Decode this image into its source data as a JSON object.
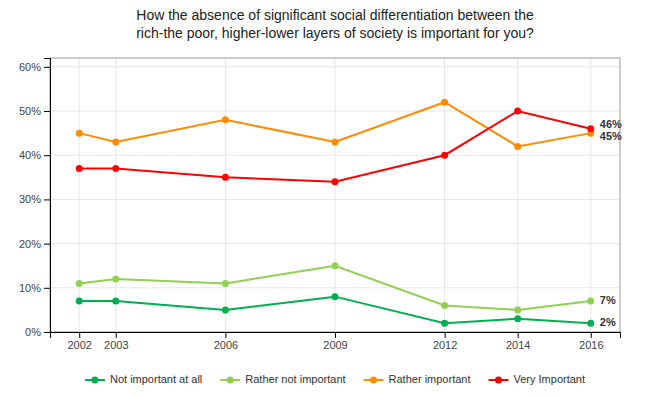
{
  "chart_data": {
    "type": "line",
    "title": "How the absence of significant social differentiation between the\nrich-the poor, higher-lower layers of society is important for you?",
    "x": [
      2002,
      2003,
      2006,
      2009,
      2012,
      2014,
      2016
    ],
    "series": [
      {
        "name": "Not important at all",
        "color": "#00b050",
        "marker": "circle",
        "values": [
          7,
          7,
          5,
          8,
          2,
          3,
          2
        ],
        "value_labels": [
          null,
          null,
          null,
          null,
          null,
          null,
          "2%"
        ]
      },
      {
        "name": "Rather not important",
        "color": "#92d050",
        "marker": "circle",
        "values": [
          11,
          12,
          11,
          15,
          6,
          5,
          7
        ],
        "value_labels": [
          null,
          null,
          null,
          null,
          null,
          null,
          "7%"
        ]
      },
      {
        "name": "Rather important",
        "color": "#ff8c00",
        "marker": "circle",
        "values": [
          45,
          43,
          48,
          43,
          52,
          42,
          45
        ],
        "value_labels": [
          null,
          null,
          null,
          null,
          null,
          null,
          "45%"
        ]
      },
      {
        "name": "Very Important",
        "color": "#ff0000",
        "marker": "circle",
        "values": [
          37,
          37,
          35,
          34,
          40,
          50,
          46
        ],
        "value_labels": [
          null,
          null,
          null,
          null,
          null,
          null,
          "46%"
        ]
      }
    ],
    "xlim": [
      2001.2,
      2016.8
    ],
    "xticks": [
      2002,
      2003,
      2006,
      2009,
      2012,
      2014,
      2016
    ],
    "ylim": [
      0,
      62
    ],
    "yticks": [
      {
        "value": 0,
        "label": "0%"
      },
      {
        "value": 10,
        "label": "10%"
      },
      {
        "value": 20,
        "label": "20%"
      },
      {
        "value": 30,
        "label": "30%"
      },
      {
        "value": 40,
        "label": "40%"
      },
      {
        "value": 50,
        "label": "50%"
      },
      {
        "value": 60,
        "label": "60%"
      }
    ],
    "grid": true,
    "legend": "bottom"
  }
}
